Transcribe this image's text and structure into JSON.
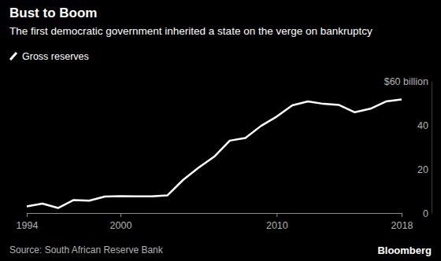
{
  "chart_data": {
    "type": "line",
    "title": "Bust to Boom",
    "subtitle": "The first democratic government inherited a state on the verge on bankruptcy",
    "source": "Source: South African Reserve Bank",
    "credit": "Bloomberg",
    "x": [
      1994,
      1995,
      1996,
      1997,
      1998,
      1999,
      2000,
      2001,
      2002,
      2003,
      2004,
      2005,
      2006,
      2007,
      2008,
      2009,
      2010,
      2011,
      2012,
      2013,
      2014,
      2015,
      2016,
      2017,
      2018
    ],
    "series": [
      {
        "name": "Gross reserves",
        "color": "#ffffff",
        "values": [
          3.0,
          4.3,
          2.3,
          5.9,
          5.6,
          7.5,
          7.7,
          7.6,
          7.6,
          8.0,
          15.0,
          20.6,
          25.6,
          32.9,
          34.1,
          39.6,
          43.8,
          48.9,
          50.7,
          49.6,
          49.1,
          45.8,
          47.4,
          50.7,
          51.6
        ]
      }
    ],
    "xlim": [
      1994,
      2018
    ],
    "xticks": [
      1994,
      2000,
      2010,
      2018
    ],
    "ylim": [
      0,
      60
    ],
    "yticks": [
      0,
      20,
      40,
      {
        "value": 60,
        "label": "$60 billion"
      }
    ],
    "grid": false,
    "legend": "top-left"
  }
}
